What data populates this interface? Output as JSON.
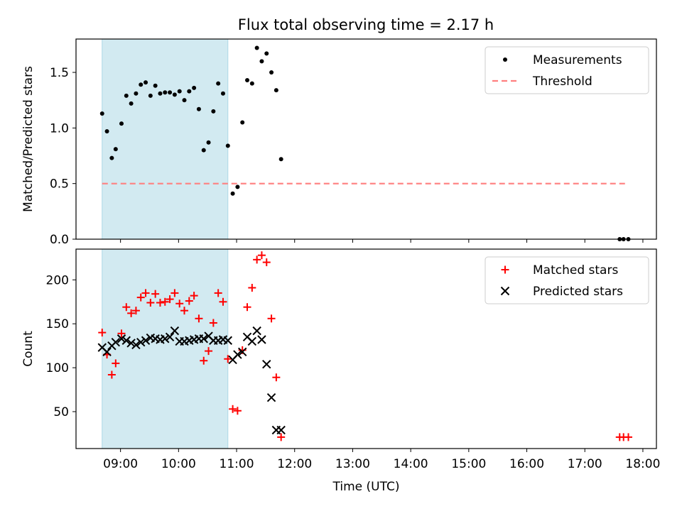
{
  "chart_data": [
    {
      "type": "scatter",
      "title": "Flux total observing time = 2.17 h",
      "xlabel": "",
      "ylabel": "Matched/Predicted stars",
      "xlim": [
        "08:14",
        "18:14"
      ],
      "ylim": [
        0,
        1.8
      ],
      "xticks": [
        "09:00",
        "10:00",
        "11:00",
        "12:00",
        "13:00",
        "14:00",
        "15:00",
        "16:00",
        "17:00",
        "18:00"
      ],
      "yticks": [
        "0.0",
        "0.5",
        "1.0",
        "1.5"
      ],
      "shaded_region": {
        "start": "08:41",
        "end": "10:51",
        "color": "#add8e6"
      },
      "legend": {
        "position": "top-right",
        "entries": [
          "Measurements",
          "Threshold"
        ]
      },
      "series": [
        {
          "name": "Measurements",
          "marker": "dot",
          "color": "#000000",
          "x": [
            "08:41",
            "08:46",
            "08:51",
            "08:55",
            "09:01",
            "09:06",
            "09:11",
            "09:16",
            "09:21",
            "09:26",
            "09:31",
            "09:36",
            "09:41",
            "09:46",
            "09:51",
            "09:56",
            "10:01",
            "10:06",
            "10:11",
            "10:16",
            "10:21",
            "10:26",
            "10:31",
            "10:36",
            "10:41",
            "10:46",
            "10:51",
            "10:56",
            "11:01",
            "11:06",
            "11:11",
            "11:16",
            "11:21",
            "11:26",
            "11:31",
            "11:36",
            "11:41",
            "11:46",
            "17:36",
            "17:40",
            "17:45"
          ],
          "y": [
            1.13,
            0.97,
            0.73,
            0.81,
            1.04,
            1.29,
            1.22,
            1.31,
            1.39,
            1.41,
            1.29,
            1.38,
            1.31,
            1.32,
            1.32,
            1.3,
            1.33,
            1.25,
            1.33,
            1.36,
            1.17,
            0.8,
            0.87,
            1.15,
            1.4,
            1.31,
            0.84,
            0.41,
            0.47,
            1.05,
            1.43,
            1.4,
            1.72,
            1.6,
            1.67,
            1.5,
            1.34,
            0.72,
            0,
            0,
            0
          ]
        },
        {
          "name": "Threshold",
          "style": "dashed",
          "color": "#ff7f7f",
          "x": [
            "08:41",
            "17:45"
          ],
          "y": [
            0.5,
            0.5
          ]
        }
      ]
    },
    {
      "type": "scatter",
      "title": "",
      "xlabel": "Time (UTC)",
      "ylabel": "Count",
      "xlim": [
        "08:14",
        "18:14"
      ],
      "ylim": [
        8,
        235
      ],
      "xticks": [
        "09:00",
        "10:00",
        "11:00",
        "12:00",
        "13:00",
        "14:00",
        "15:00",
        "16:00",
        "17:00",
        "18:00"
      ],
      "yticks": [
        "50",
        "100",
        "150",
        "200"
      ],
      "shaded_region": {
        "start": "08:41",
        "end": "10:51",
        "color": "#add8e6"
      },
      "legend": {
        "position": "top-right",
        "entries": [
          "Matched stars",
          "Predicted stars"
        ]
      },
      "series": [
        {
          "name": "Matched stars",
          "marker": "plus",
          "color": "#ff0000",
          "x": [
            "08:41",
            "08:46",
            "08:51",
            "08:55",
            "09:01",
            "09:06",
            "09:11",
            "09:16",
            "09:21",
            "09:26",
            "09:31",
            "09:36",
            "09:41",
            "09:46",
            "09:51",
            "09:56",
            "10:01",
            "10:06",
            "10:11",
            "10:16",
            "10:21",
            "10:26",
            "10:31",
            "10:36",
            "10:41",
            "10:46",
            "10:51",
            "10:56",
            "11:01",
            "11:06",
            "11:11",
            "11:16",
            "11:21",
            "11:26",
            "11:31",
            "11:36",
            "11:41",
            "11:46",
            "17:36",
            "17:40",
            "17:45"
          ],
          "y": [
            140,
            115,
            92,
            105,
            139,
            169,
            162,
            165,
            180,
            185,
            174,
            184,
            174,
            175,
            178,
            185,
            173,
            165,
            176,
            182,
            156,
            108,
            119,
            151,
            185,
            175,
            110,
            53,
            51,
            120,
            169,
            191,
            223,
            228,
            220,
            156,
            89,
            21,
            21,
            21,
            21
          ]
        },
        {
          "name": "Predicted stars",
          "marker": "x",
          "color": "#000000",
          "x": [
            "08:41",
            "08:46",
            "08:51",
            "08:55",
            "09:01",
            "09:06",
            "09:11",
            "09:16",
            "09:21",
            "09:26",
            "09:31",
            "09:36",
            "09:41",
            "09:46",
            "09:51",
            "09:56",
            "10:01",
            "10:06",
            "10:11",
            "10:16",
            "10:21",
            "10:26",
            "10:31",
            "10:36",
            "10:41",
            "10:46",
            "10:51",
            "10:56",
            "11:01",
            "11:06",
            "11:11",
            "11:16",
            "11:21",
            "11:26",
            "11:31",
            "11:36",
            "11:41",
            "11:46"
          ],
          "y": [
            123,
            118,
            125,
            129,
            133,
            131,
            128,
            126,
            129,
            131,
            134,
            133,
            132,
            133,
            135,
            142,
            130,
            130,
            131,
            132,
            133,
            133,
            136,
            131,
            131,
            132,
            131,
            109,
            115,
            118,
            135,
            130,
            142,
            132,
            104,
            66,
            29,
            29
          ]
        }
      ]
    }
  ]
}
